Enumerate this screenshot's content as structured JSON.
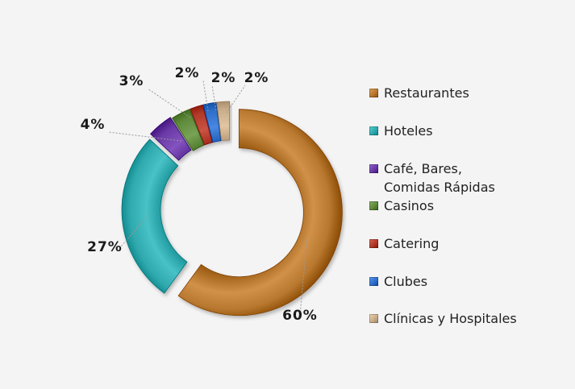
{
  "chart_data": {
    "type": "pie",
    "donut": true,
    "categories": [
      "Restaurantes",
      "Hoteles",
      "Café, Bares, Comidas Rápidas",
      "Casinos",
      "Catering",
      "Clubes",
      "Clínicas y Hospitales"
    ],
    "values": [
      60,
      27,
      4,
      3,
      2,
      2,
      2
    ],
    "data_labels": [
      "60%",
      "27%",
      "4%",
      "3%",
      "2%",
      "2%",
      "2%"
    ],
    "colors": [
      "#b8782f",
      "#2fa9ad",
      "#6a3aa6",
      "#5f8a3c",
      "#b23a2a",
      "#2f6fc9",
      "#c9ad8a"
    ],
    "legend_position": "right",
    "title": "",
    "exploded": true
  },
  "legend": {
    "items": [
      {
        "label": "Restaurantes",
        "color": "#b8782f"
      },
      {
        "label": "Hoteles",
        "color": "#2fa9ad"
      },
      {
        "label": "Café, Bares,\nComidas Rápidas",
        "color": "#6a3aa6"
      },
      {
        "label": "Casinos",
        "color": "#5f8a3c"
      },
      {
        "label": "Catering",
        "color": "#b23a2a"
      },
      {
        "label": "Clubes",
        "color": "#2f6fc9"
      },
      {
        "label": "Clínicas y Hospitales",
        "color": "#c9ad8a"
      }
    ]
  }
}
